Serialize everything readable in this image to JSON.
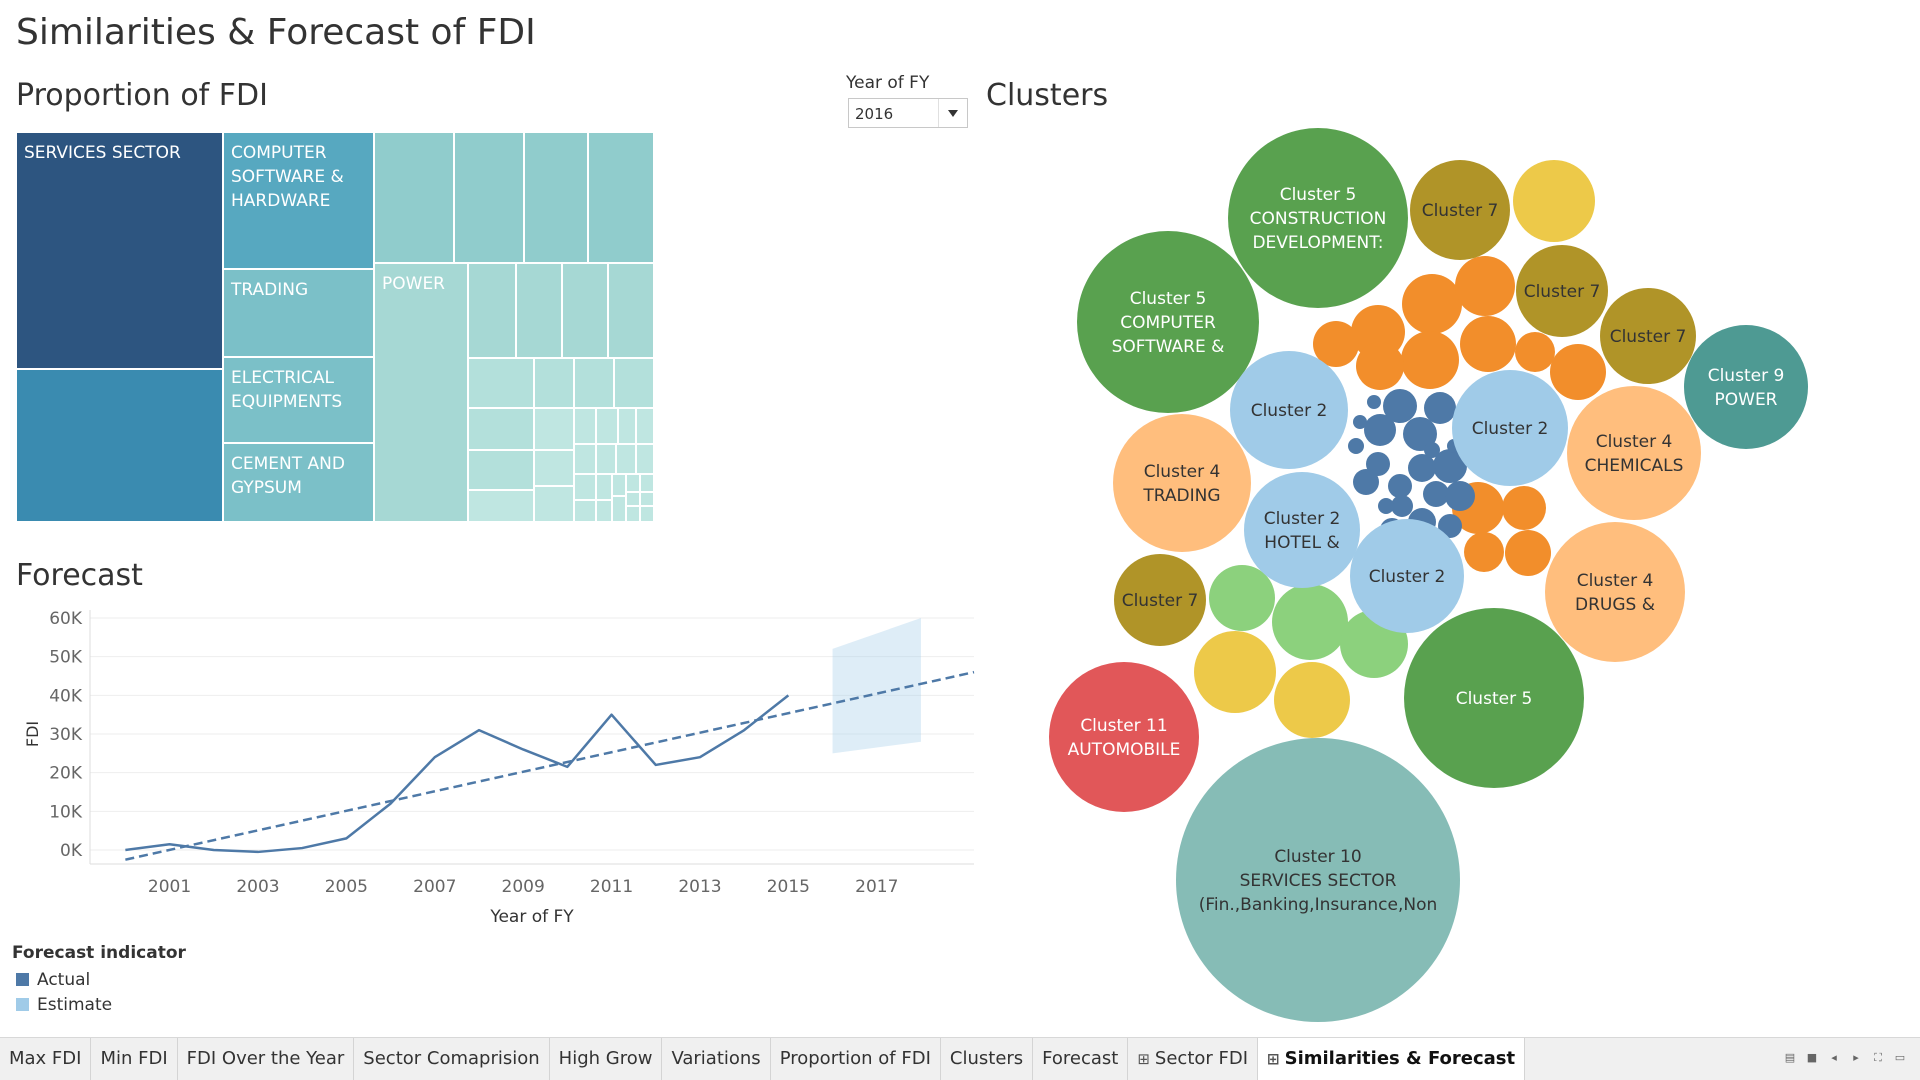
{
  "page": {
    "title": "Similarities & Forecast of FDI"
  },
  "treemap": {
    "title": "Proportion of FDI",
    "cells": [
      {
        "label": "SERVICES SECTOR",
        "color": "#2d5580"
      },
      {
        "label": "",
        "color": "#3a8bb0"
      },
      {
        "label": "COMPUTER SOFTWARE & HARDWARE",
        "color": "#57a8c0"
      },
      {
        "label": "TRADING",
        "color": "#7bc0c8"
      },
      {
        "label": "ELECTRICAL EQUIPMENTS",
        "color": "#7bc0c8"
      },
      {
        "label": "CEMENT AND GYPSUM",
        "color": "#7bc0c8"
      },
      {
        "label": "POWER",
        "color": "#a6d8d4"
      }
    ],
    "small_cell_colors": [
      "#90cccc",
      "#a6d8d4",
      "#b3e0db",
      "#bfe6e1"
    ]
  },
  "filter": {
    "label": "Year of FY",
    "value": "2016"
  },
  "forecast": {
    "title": "Forecast",
    "legend": {
      "title": "Forecast indicator",
      "items": [
        {
          "label": "Actual",
          "color": "#4e79a7"
        },
        {
          "label": "Estimate",
          "color": "#a0cbe8"
        }
      ]
    }
  },
  "chart_data": {
    "type": "line",
    "title": "Forecast",
    "xlabel": "Year of FY",
    "ylabel": "FDI",
    "x_ticks": [
      2001,
      2003,
      2005,
      2007,
      2009,
      2011,
      2013,
      2015,
      2017
    ],
    "y_ticks": [
      "0K",
      "10K",
      "20K",
      "30K",
      "40K",
      "50K",
      "60K"
    ],
    "xlim": [
      1999.2,
      2019.2
    ],
    "ylim": [
      0,
      60000
    ],
    "grid": true,
    "series": [
      {
        "name": "Actual",
        "type": "line",
        "color": "#4e79a7",
        "x": [
          2000,
          2001,
          2002,
          2003,
          2004,
          2005,
          2006,
          2007,
          2008,
          2009,
          2010,
          2011,
          2012,
          2013,
          2014,
          2015
        ],
        "y": [
          0,
          1500,
          0,
          -500,
          500,
          3000,
          12000,
          24000,
          31000,
          26000,
          21500,
          35000,
          22000,
          24000,
          31000,
          40000
        ]
      },
      {
        "type": "trend",
        "color": "#4e79a7",
        "x": [
          2000,
          2019.2
        ],
        "y": [
          -2500,
          46000
        ]
      },
      {
        "name": "Estimate",
        "type": "band",
        "color": "#a0cbe8",
        "x": [
          2016,
          2018
        ],
        "upper": [
          52000,
          60000
        ],
        "lower": [
          25000,
          28000
        ]
      }
    ]
  },
  "clusters": {
    "title": "Clusters",
    "bubbles": [
      {
        "cx": 288,
        "cy": 608,
        "r": 142,
        "color": "#86bcb6",
        "lines": [
          "Cluster 10",
          "SERVICES SECTOR",
          "(Fin.,Banking,Insurance,Non"
        ],
        "text": "#333333"
      },
      {
        "cx": 89,
        "cy": 472,
        "r": 75,
        "color": "#e15759",
        "lines": [
          "Cluster 11",
          "AUTOMOBILE"
        ],
        "text": "#ffffff"
      },
      {
        "cx": 464,
        "cy": 590,
        "r": 0,
        "color": "#59a14f",
        "lines": [],
        "text": "#ffffff"
      },
      {
        "cx": 464,
        "cy": 590,
        "r": 0,
        "color": "#59a14f",
        "lines": [],
        "text": "#ffffff"
      },
      {
        "cx": 464,
        "cy": 590,
        "r": 0,
        "color": "#59a14f",
        "lines": [],
        "text": "#ffffff"
      },
      {
        "cx": 464,
        "cy": 590,
        "r": 0,
        "color": "#59a14f",
        "lines": [],
        "text": "#ffffff"
      },
      {
        "cx": 464,
        "cy": 590,
        "r": 0,
        "color": "#59a14f",
        "lines": [],
        "text": "#ffffff"
      },
      {
        "cx": 464,
        "cy": 590,
        "r": 0,
        "color": "#59a14f",
        "lines": [],
        "text": "#ffffff"
      }
    ],
    "items": [
      {
        "cx": 288,
        "cy": 770,
        "r": 142,
        "color": "#86bcb6",
        "lines": [
          "Cluster 10",
          "SERVICES SECTOR",
          "(Fin.,Banking,Insurance,Non"
        ],
        "text": "#333333"
      },
      {
        "cx": 94,
        "cy": 627,
        "r": 75,
        "color": "#e15759",
        "lines": [
          "Cluster 11",
          "AUTOMOBILE"
        ],
        "text": "#ffffff"
      },
      {
        "cx": 464,
        "cy": 588,
        "r": 90,
        "color": "#59a14f",
        "lines": [
          "Cluster 5"
        ],
        "text": "#ffffff"
      },
      {
        "cx": 288,
        "cy": 108,
        "r": 90,
        "color": "#59a14f",
        "lines": [
          "Cluster 5",
          "CONSTRUCTION",
          "DEVELOPMENT:"
        ],
        "text": "#ffffff"
      },
      {
        "cx": 138,
        "cy": 212,
        "r": 91,
        "color": "#59a14f",
        "lines": [
          "Cluster 5",
          "COMPUTER",
          "SOFTWARE &"
        ],
        "text": "#ffffff"
      },
      {
        "cx": 430,
        "cy": 100,
        "r": 50,
        "color": "#b09428",
        "lines": [
          "Cluster 7"
        ],
        "text": "#333333"
      },
      {
        "cx": 524,
        "cy": 91,
        "r": 41,
        "color": "#edc949",
        "lines": [],
        "text": "#333333"
      },
      {
        "cx": 532,
        "cy": 181,
        "r": 46,
        "color": "#b09428",
        "lines": [
          "Cluster 7"
        ],
        "text": "#333333"
      },
      {
        "cx": 618,
        "cy": 226,
        "r": 48,
        "color": "#b09428",
        "lines": [
          "Cluster 7"
        ],
        "text": "#333333"
      },
      {
        "cx": 130,
        "cy": 490,
        "r": 46,
        "color": "#b09428",
        "lines": [
          "Cluster 7"
        ],
        "text": "#333333"
      },
      {
        "cx": 716,
        "cy": 277,
        "r": 62,
        "color": "#4e9a93",
        "lines": [
          "Cluster 9",
          "POWER"
        ],
        "text": "#ffffff"
      },
      {
        "cx": 604,
        "cy": 343,
        "r": 67,
        "color": "#ffbe7d",
        "lines": [
          "Cluster 4",
          "CHEMICALS"
        ],
        "text": "#333333"
      },
      {
        "cx": 152,
        "cy": 373,
        "r": 69,
        "color": "#ffbe7d",
        "lines": [
          "Cluster 4",
          "TRADING"
        ],
        "text": "#333333"
      },
      {
        "cx": 585,
        "cy": 482,
        "r": 70,
        "color": "#ffbe7d",
        "lines": [
          "Cluster 4",
          "DRUGS &"
        ],
        "text": "#333333"
      },
      {
        "cx": 259,
        "cy": 300,
        "r": 59,
        "color": "#a0cbe8",
        "lines": [
          "Cluster 2"
        ],
        "text": "#333333"
      },
      {
        "cx": 480,
        "cy": 318,
        "r": 58,
        "color": "#a0cbe8",
        "lines": [
          "Cluster 2"
        ],
        "text": "#333333"
      },
      {
        "cx": 272,
        "cy": 420,
        "r": 58,
        "color": "#a0cbe8",
        "lines": [
          "Cluster 2",
          "HOTEL &"
        ],
        "text": "#333333"
      },
      {
        "cx": 377,
        "cy": 466,
        "r": 57,
        "color": "#a0cbe8",
        "lines": [
          "Cluster 2"
        ],
        "text": "#333333"
      }
    ],
    "small_bubbles": [
      {
        "cx": 348,
        "cy": 222,
        "r": 27,
        "color": "#f28e2b"
      },
      {
        "cx": 402,
        "cy": 194,
        "r": 30,
        "color": "#f28e2b"
      },
      {
        "cx": 455,
        "cy": 176,
        "r": 30,
        "color": "#f28e2b"
      },
      {
        "cx": 458,
        "cy": 234,
        "r": 28,
        "color": "#f28e2b"
      },
      {
        "cx": 400,
        "cy": 250,
        "r": 29,
        "color": "#f28e2b"
      },
      {
        "cx": 350,
        "cy": 256,
        "r": 24,
        "color": "#f28e2b"
      },
      {
        "cx": 306,
        "cy": 234,
        "r": 23,
        "color": "#f28e2b"
      },
      {
        "cx": 505,
        "cy": 242,
        "r": 20,
        "color": "#f28e2b"
      },
      {
        "cx": 548,
        "cy": 262,
        "r": 28,
        "color": "#f28e2b"
      },
      {
        "cx": 448,
        "cy": 398,
        "r": 26,
        "color": "#f28e2b"
      },
      {
        "cx": 494,
        "cy": 398,
        "r": 22,
        "color": "#f28e2b"
      },
      {
        "cx": 454,
        "cy": 442,
        "r": 20,
        "color": "#f28e2b"
      },
      {
        "cx": 498,
        "cy": 443,
        "r": 23,
        "color": "#f28e2b"
      },
      {
        "cx": 212,
        "cy": 488,
        "r": 33,
        "color": "#8cd17d"
      },
      {
        "cx": 280,
        "cy": 512,
        "r": 38,
        "color": "#8cd17d"
      },
      {
        "cx": 344,
        "cy": 534,
        "r": 34,
        "color": "#8cd17d"
      },
      {
        "cx": 205,
        "cy": 562,
        "r": 41,
        "color": "#edc949"
      },
      {
        "cx": 282,
        "cy": 590,
        "r": 38,
        "color": "#edc949"
      },
      {
        "cx": 370,
        "cy": 296,
        "r": 17,
        "color": "#4e79a7"
      },
      {
        "cx": 410,
        "cy": 298,
        "r": 16,
        "color": "#4e79a7"
      },
      {
        "cx": 350,
        "cy": 320,
        "r": 16,
        "color": "#4e79a7"
      },
      {
        "cx": 390,
        "cy": 324,
        "r": 17,
        "color": "#4e79a7"
      },
      {
        "cx": 420,
        "cy": 356,
        "r": 17,
        "color": "#4e79a7"
      },
      {
        "cx": 392,
        "cy": 358,
        "r": 14,
        "color": "#4e79a7"
      },
      {
        "cx": 348,
        "cy": 354,
        "r": 12,
        "color": "#4e79a7"
      },
      {
        "cx": 336,
        "cy": 372,
        "r": 13,
        "color": "#4e79a7"
      },
      {
        "cx": 370,
        "cy": 376,
        "r": 12,
        "color": "#4e79a7"
      },
      {
        "cx": 406,
        "cy": 384,
        "r": 13,
        "color": "#4e79a7"
      },
      {
        "cx": 430,
        "cy": 386,
        "r": 15,
        "color": "#4e79a7"
      },
      {
        "cx": 372,
        "cy": 396,
        "r": 11,
        "color": "#4e79a7"
      },
      {
        "cx": 392,
        "cy": 412,
        "r": 14,
        "color": "#4e79a7"
      },
      {
        "cx": 362,
        "cy": 420,
        "r": 12,
        "color": "#4e79a7"
      },
      {
        "cx": 420,
        "cy": 416,
        "r": 12,
        "color": "#4e79a7"
      },
      {
        "cx": 326,
        "cy": 336,
        "r": 8,
        "color": "#4e79a7"
      },
      {
        "cx": 330,
        "cy": 312,
        "r": 7,
        "color": "#4e79a7"
      },
      {
        "cx": 344,
        "cy": 292,
        "r": 7,
        "color": "#4e79a7"
      },
      {
        "cx": 402,
        "cy": 340,
        "r": 8,
        "color": "#4e79a7"
      },
      {
        "cx": 356,
        "cy": 396,
        "r": 8,
        "color": "#4e79a7"
      },
      {
        "cx": 424,
        "cy": 336,
        "r": 7,
        "color": "#4e79a7"
      }
    ]
  },
  "tabs": [
    {
      "label": "Max FDI",
      "active": false,
      "icon": false
    },
    {
      "label": "Min FDI",
      "active": false,
      "icon": false
    },
    {
      "label": "FDI Over the Year",
      "active": false,
      "icon": false
    },
    {
      "label": "Sector Comaprision",
      "active": false,
      "icon": false
    },
    {
      "label": "High Grow",
      "active": false,
      "icon": false
    },
    {
      "label": "Variations",
      "active": false,
      "icon": false
    },
    {
      "label": "Proportion of FDI",
      "active": false,
      "icon": false
    },
    {
      "label": "Clusters",
      "active": false,
      "icon": false
    },
    {
      "label": "Forecast",
      "active": false,
      "icon": false
    },
    {
      "label": "Sector FDI",
      "active": false,
      "icon": true
    },
    {
      "label": "Similarities & Forecast",
      "active": true,
      "icon": true
    }
  ]
}
